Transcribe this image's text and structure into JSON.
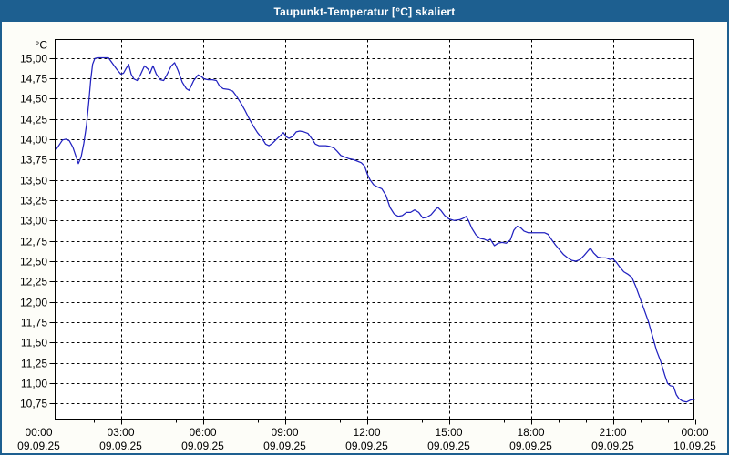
{
  "window": {
    "title": "Taupunkt-Temperatur [°C] skaliert"
  },
  "colors": {
    "titlebar_bg": "#1d5f90",
    "frame_border": "#1d5f90",
    "plot_background": "#ffffff",
    "grid_color": "#000000",
    "line_color": "#2222c0",
    "page_background": "#fdfdf8"
  },
  "chart_data": {
    "type": "line",
    "title": "Taupunkt-Temperatur [°C] skaliert",
    "xlabel": "",
    "ylabel": "°C",
    "grid": "dashed",
    "legend": "none",
    "y_axis": {
      "unit": "°C",
      "min": 10.75,
      "max": 15.0,
      "step": 0.25,
      "tick_labels": [
        "15,00",
        "14,75",
        "14,50",
        "14,25",
        "14,00",
        "13,75",
        "13,50",
        "13,25",
        "13,00",
        "12,75",
        "12,50",
        "12,25",
        "12,00",
        "11,75",
        "11,50",
        "11,25",
        "11,00",
        "10,75"
      ]
    },
    "x_axis": {
      "range_hours": [
        0,
        24
      ],
      "major_step_hours": 3,
      "minor_step_hours": 1,
      "ticks": [
        {
          "time": "00:00",
          "date": "09.09.25"
        },
        {
          "time": "03:00",
          "date": "09.09.25"
        },
        {
          "time": "06:00",
          "date": "09.09.25"
        },
        {
          "time": "09:00",
          "date": "09.09.25"
        },
        {
          "time": "12:00",
          "date": "09.09.25"
        },
        {
          "time": "15:00",
          "date": "09.09.25"
        },
        {
          "time": "18:00",
          "date": "09.09.25"
        },
        {
          "time": "21:00",
          "date": "09.09.25"
        },
        {
          "time": "00:00",
          "date": "10.09.25"
        }
      ]
    },
    "series": [
      {
        "name": "Taupunkt-Temperatur",
        "color": "#2222c0",
        "points": [
          [
            0.63,
            13.87
          ],
          [
            0.75,
            13.93
          ],
          [
            0.87,
            13.99
          ],
          [
            1.0,
            14.0
          ],
          [
            1.12,
            13.98
          ],
          [
            1.25,
            13.9
          ],
          [
            1.37,
            13.78
          ],
          [
            1.45,
            13.7
          ],
          [
            1.55,
            13.78
          ],
          [
            1.65,
            13.95
          ],
          [
            1.75,
            14.18
          ],
          [
            1.83,
            14.45
          ],
          [
            1.9,
            14.72
          ],
          [
            1.97,
            14.92
          ],
          [
            2.05,
            14.99
          ],
          [
            2.15,
            15.0
          ],
          [
            2.55,
            15.0
          ],
          [
            2.7,
            14.93
          ],
          [
            2.85,
            14.86
          ],
          [
            3.0,
            14.8
          ],
          [
            3.1,
            14.81
          ],
          [
            3.2,
            14.87
          ],
          [
            3.29,
            14.92
          ],
          [
            3.38,
            14.8
          ],
          [
            3.48,
            14.74
          ],
          [
            3.6,
            14.72
          ],
          [
            3.72,
            14.79
          ],
          [
            3.87,
            14.9
          ],
          [
            4.0,
            14.86
          ],
          [
            4.07,
            14.81
          ],
          [
            4.18,
            14.9
          ],
          [
            4.3,
            14.8
          ],
          [
            4.45,
            14.73
          ],
          [
            4.57,
            14.72
          ],
          [
            4.7,
            14.8
          ],
          [
            4.85,
            14.9
          ],
          [
            4.97,
            14.94
          ],
          [
            5.1,
            14.84
          ],
          [
            5.25,
            14.7
          ],
          [
            5.4,
            14.62
          ],
          [
            5.5,
            14.6
          ],
          [
            5.67,
            14.72
          ],
          [
            5.83,
            14.79
          ],
          [
            5.95,
            14.77
          ],
          [
            6.05,
            14.74
          ],
          [
            6.2,
            14.73
          ],
          [
            6.35,
            14.73
          ],
          [
            6.5,
            14.72
          ],
          [
            6.62,
            14.65
          ],
          [
            6.75,
            14.62
          ],
          [
            6.95,
            14.61
          ],
          [
            7.1,
            14.59
          ],
          [
            7.25,
            14.52
          ],
          [
            7.4,
            14.44
          ],
          [
            7.55,
            14.35
          ],
          [
            7.67,
            14.27
          ],
          [
            7.85,
            14.16
          ],
          [
            8.0,
            14.08
          ],
          [
            8.17,
            14.01
          ],
          [
            8.3,
            13.94
          ],
          [
            8.42,
            13.92
          ],
          [
            8.55,
            13.95
          ],
          [
            8.67,
            13.99
          ],
          [
            8.83,
            14.04
          ],
          [
            8.95,
            14.08
          ],
          [
            9.05,
            14.03
          ],
          [
            9.15,
            14.01
          ],
          [
            9.28,
            14.03
          ],
          [
            9.42,
            14.09
          ],
          [
            9.55,
            14.1
          ],
          [
            9.7,
            14.09
          ],
          [
            9.85,
            14.07
          ],
          [
            10.0,
            14.0
          ],
          [
            10.12,
            13.94
          ],
          [
            10.25,
            13.92
          ],
          [
            10.5,
            13.92
          ],
          [
            10.65,
            13.91
          ],
          [
            10.8,
            13.89
          ],
          [
            10.92,
            13.85
          ],
          [
            11.05,
            13.8
          ],
          [
            11.2,
            13.78
          ],
          [
            11.35,
            13.76
          ],
          [
            11.5,
            13.75
          ],
          [
            11.65,
            13.73
          ],
          [
            11.8,
            13.71
          ],
          [
            11.92,
            13.67
          ],
          [
            12.02,
            13.57
          ],
          [
            12.12,
            13.5
          ],
          [
            12.25,
            13.44
          ],
          [
            12.4,
            13.41
          ],
          [
            12.55,
            13.39
          ],
          [
            12.7,
            13.31
          ],
          [
            12.85,
            13.16
          ],
          [
            13.0,
            13.08
          ],
          [
            13.15,
            13.05
          ],
          [
            13.3,
            13.06
          ],
          [
            13.45,
            13.1
          ],
          [
            13.6,
            13.1
          ],
          [
            13.75,
            13.13
          ],
          [
            13.9,
            13.1
          ],
          [
            14.05,
            13.03
          ],
          [
            14.2,
            13.04
          ],
          [
            14.35,
            13.07
          ],
          [
            14.5,
            13.13
          ],
          [
            14.6,
            13.16
          ],
          [
            14.72,
            13.12
          ],
          [
            14.85,
            13.06
          ],
          [
            15.0,
            13.02
          ],
          [
            15.2,
            13.0
          ],
          [
            15.4,
            13.01
          ],
          [
            15.55,
            13.03
          ],
          [
            15.63,
            13.05
          ],
          [
            15.72,
            13.0
          ],
          [
            15.85,
            12.9
          ],
          [
            16.0,
            12.82
          ],
          [
            16.15,
            12.78
          ],
          [
            16.3,
            12.77
          ],
          [
            16.42,
            12.75
          ],
          [
            16.52,
            12.77
          ],
          [
            16.67,
            12.69
          ],
          [
            16.8,
            12.72
          ],
          [
            16.95,
            12.73
          ],
          [
            17.1,
            12.72
          ],
          [
            17.25,
            12.76
          ],
          [
            17.38,
            12.88
          ],
          [
            17.5,
            12.93
          ],
          [
            17.63,
            12.91
          ],
          [
            17.75,
            12.87
          ],
          [
            17.9,
            12.85
          ],
          [
            18.1,
            12.85
          ],
          [
            18.3,
            12.85
          ],
          [
            18.5,
            12.85
          ],
          [
            18.63,
            12.83
          ],
          [
            18.75,
            12.77
          ],
          [
            18.9,
            12.7
          ],
          [
            19.05,
            12.64
          ],
          [
            19.2,
            12.58
          ],
          [
            19.35,
            12.54
          ],
          [
            19.5,
            12.51
          ],
          [
            19.65,
            12.5
          ],
          [
            19.8,
            12.52
          ],
          [
            19.95,
            12.57
          ],
          [
            20.1,
            12.63
          ],
          [
            20.18,
            12.66
          ],
          [
            20.3,
            12.6
          ],
          [
            20.45,
            12.55
          ],
          [
            20.6,
            12.54
          ],
          [
            20.75,
            12.54
          ],
          [
            20.9,
            12.52
          ],
          [
            21.0,
            12.53
          ],
          [
            21.12,
            12.49
          ],
          [
            21.25,
            12.43
          ],
          [
            21.4,
            12.37
          ],
          [
            21.55,
            12.34
          ],
          [
            21.7,
            12.3
          ],
          [
            21.85,
            12.18
          ],
          [
            22.0,
            12.04
          ],
          [
            22.15,
            11.9
          ],
          [
            22.3,
            11.76
          ],
          [
            22.45,
            11.58
          ],
          [
            22.6,
            11.4
          ],
          [
            22.75,
            11.27
          ],
          [
            22.9,
            11.1
          ],
          [
            23.0,
            11.0
          ],
          [
            23.1,
            10.97
          ],
          [
            23.22,
            10.96
          ],
          [
            23.32,
            10.86
          ],
          [
            23.42,
            10.81
          ],
          [
            23.55,
            10.78
          ],
          [
            23.7,
            10.77
          ],
          [
            23.82,
            10.79
          ],
          [
            23.92,
            10.8
          ],
          [
            24.0,
            10.8
          ]
        ]
      }
    ]
  }
}
